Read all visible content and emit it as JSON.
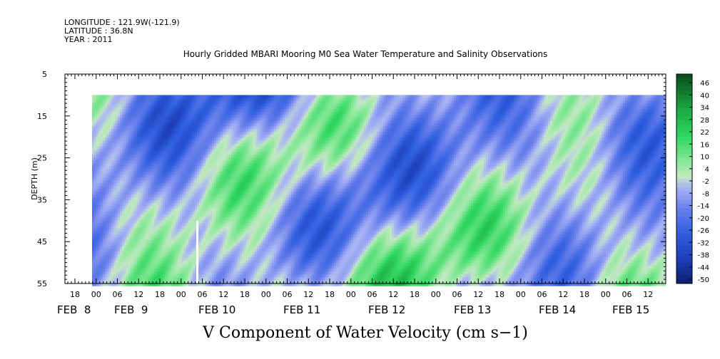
{
  "header": {
    "longitude": "LONGITUDE : 121.9W(-121.9)",
    "latitude": "LATITUDE : 36.8N",
    "year": "YEAR : 2011"
  },
  "chart_data": {
    "type": "heatmap",
    "title": "Hourly Gridded MBARI Mooring M0 Sea Water Temperature and Salinity Observations",
    "xlabel": "V Component of Water Velocity (cm s−1)",
    "ylabel": "DEPTH (m)",
    "ylim": [
      55,
      5
    ],
    "y_ticks": [
      5,
      15,
      25,
      35,
      45,
      55
    ],
    "x_hour_ticks": [
      "18",
      "00",
      "06",
      "12",
      "18",
      "00",
      "06",
      "12",
      "18",
      "00",
      "06",
      "12",
      "18",
      "00",
      "06",
      "12",
      "18",
      "00",
      "06",
      "12",
      "18",
      "00",
      "06",
      "12",
      "18",
      "00",
      "06",
      "12",
      "18",
      "00",
      "06",
      "12"
    ],
    "x_day_labels": [
      "FEB  8",
      "FEB  9",
      "FEB 10",
      "FEB 11",
      "FEB 12",
      "FEB 13",
      "FEB 14",
      "FEB 15"
    ],
    "data_depth_range": [
      10,
      55
    ],
    "colorbar": {
      "labels": [
        46,
        40,
        34,
        28,
        22,
        16,
        10,
        4,
        -2,
        -8,
        -14,
        -20,
        -26,
        -32,
        -38,
        -44,
        -50
      ],
      "range": [
        -50,
        50
      ]
    },
    "colors": {
      "strong_negative": "#0a1e6e",
      "negative": "#2f5fe0",
      "weak_negative": "#8f9ff0",
      "weak_positive": "#a8e8a8",
      "positive": "#30d860",
      "strong_positive": "#0a4a1a"
    }
  }
}
